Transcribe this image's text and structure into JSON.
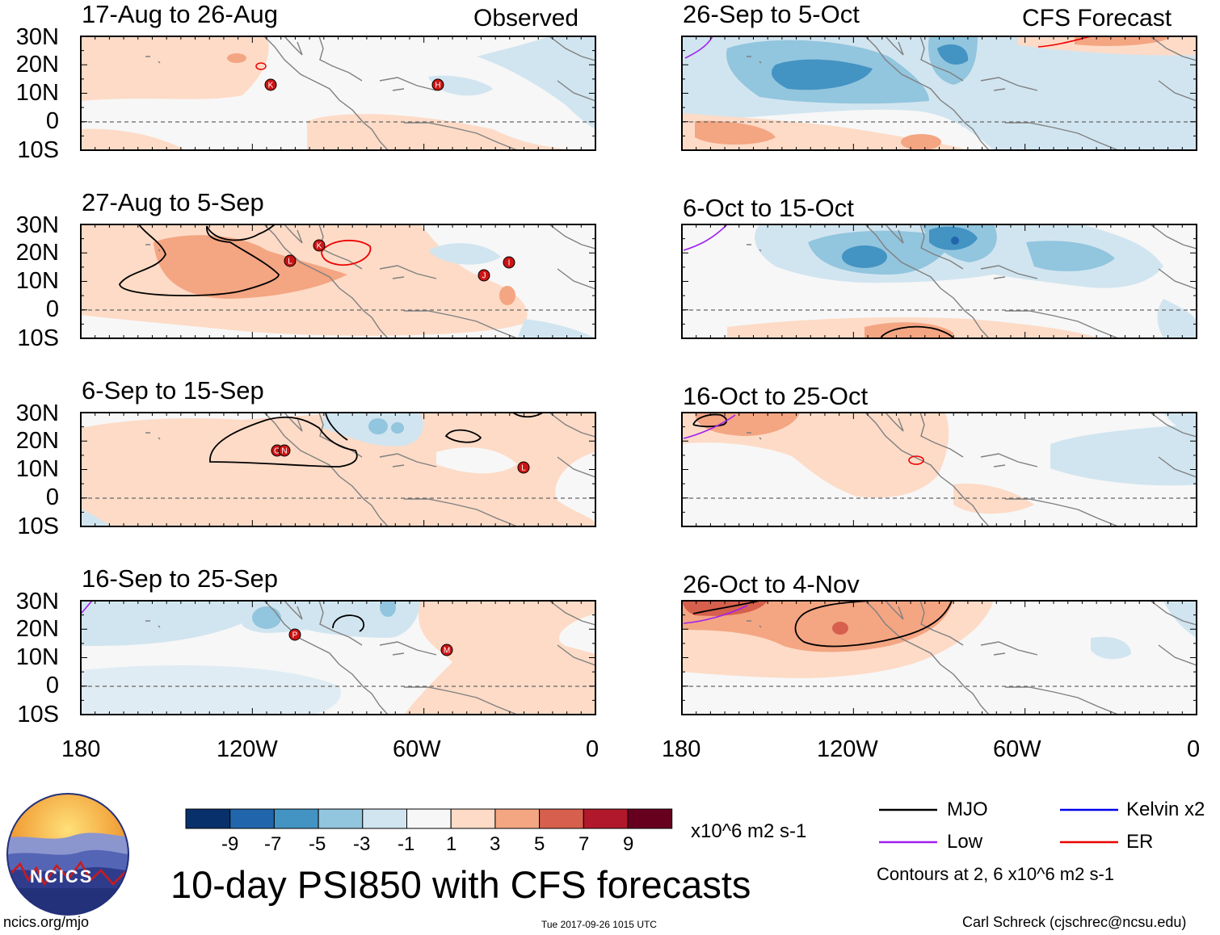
{
  "panels": {
    "left": [
      {
        "title": "17-Aug to 26-Aug",
        "tag": "Observed"
      },
      {
        "title": "27-Aug to 5-Sep",
        "tag": ""
      },
      {
        "title": "6-Sep to 15-Sep",
        "tag": ""
      },
      {
        "title": "16-Sep to 25-Sep",
        "tag": ""
      }
    ],
    "right": [
      {
        "title": "26-Sep to 5-Oct",
        "tag": "CFS Forecast"
      },
      {
        "title": "6-Oct to 15-Oct",
        "tag": ""
      },
      {
        "title": "16-Oct to 25-Oct",
        "tag": ""
      },
      {
        "title": "26-Oct to 4-Nov",
        "tag": ""
      }
    ]
  },
  "axes": {
    "lat_labels": [
      "30N",
      "20N",
      "10N",
      "0",
      "10S"
    ],
    "lon_labels": [
      "180",
      "120W",
      "60W",
      "0"
    ]
  },
  "colorbar": {
    "labels": [
      "-9",
      "-7",
      "-5",
      "-3",
      "-1",
      "1",
      "3",
      "5",
      "7",
      "9"
    ],
    "colors": [
      "#08306b",
      "#2166ac",
      "#4393c3",
      "#92c5de",
      "#d1e5f0",
      "#f7f7f7",
      "#fddbc7",
      "#f4a582",
      "#d6604d",
      "#b2182b",
      "#67001f"
    ],
    "units": "x10^6 m2 s-1"
  },
  "legend": {
    "items": [
      {
        "label": "MJO",
        "color": "#000000"
      },
      {
        "label": "Kelvin x2",
        "color": "#0000ee"
      },
      {
        "label": "Low",
        "color": "#a020f0"
      },
      {
        "label": "ER",
        "color": "#ee0000"
      }
    ],
    "note": "Contours at 2, 6 x10^6 m2 s-1"
  },
  "footer": {
    "main_title": "10-day PSI850 with CFS forecasts",
    "site": "ncics.org/mjo",
    "timestamp": "Tue 2017-09-26 1015 UTC",
    "author": "Carl Schreck (cjschrec@ncsu.edu)",
    "logo_text": "NCICS"
  },
  "storms": {
    "p1": [
      "K",
      "H"
    ],
    "p2": [
      "K",
      "L",
      "J",
      "I"
    ],
    "p3": [
      "O",
      "N",
      "L"
    ],
    "p4": [
      "P",
      "M"
    ]
  }
}
